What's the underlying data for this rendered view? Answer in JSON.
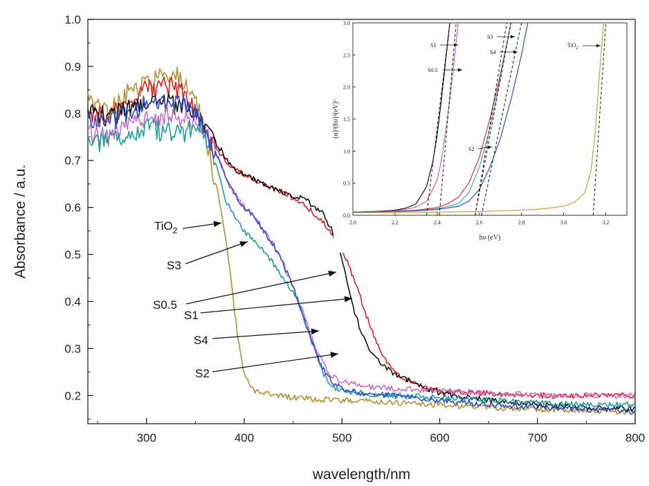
{
  "chart_data": [
    {
      "type": "line",
      "xlabel": "wavelength/nm",
      "ylabel": "Absorbance / a.u.",
      "xlim": [
        240,
        800
      ],
      "ylim": [
        0.14,
        1.0
      ],
      "xticks": [
        "300",
        "400",
        "500",
        "600",
        "700",
        "800"
      ],
      "yticks": [
        "0.2",
        "0.3",
        "0.4",
        "0.5",
        "0.6",
        "0.7",
        "0.8",
        "0.9",
        "1.0"
      ],
      "series": [
        {
          "name": "TiO2",
          "color": "#b09030",
          "x": [
            240,
            260,
            280,
            300,
            320,
            335,
            345,
            355,
            360,
            365,
            370,
            375,
            380,
            385,
            390,
            395,
            400,
            410,
            420,
            450,
            500,
            550,
            600,
            650,
            700,
            750,
            800
          ],
          "y": [
            0.83,
            0.8,
            0.84,
            0.86,
            0.88,
            0.88,
            0.85,
            0.8,
            0.76,
            0.71,
            0.66,
            0.61,
            0.55,
            0.47,
            0.38,
            0.3,
            0.24,
            0.21,
            0.205,
            0.195,
            0.19,
            0.185,
            0.18,
            0.175,
            0.17,
            0.168,
            0.165
          ]
        },
        {
          "name": "S3",
          "color": "#e02020",
          "x": [
            240,
            260,
            280,
            300,
            320,
            340,
            350,
            360,
            370,
            380,
            390,
            400,
            420,
            440,
            460,
            480,
            490,
            500,
            510,
            520,
            530,
            540,
            550,
            560,
            580,
            600,
            650,
            700,
            750,
            800
          ],
          "y": [
            0.8,
            0.79,
            0.82,
            0.85,
            0.86,
            0.84,
            0.8,
            0.76,
            0.73,
            0.7,
            0.68,
            0.67,
            0.65,
            0.63,
            0.61,
            0.57,
            0.54,
            0.51,
            0.46,
            0.4,
            0.34,
            0.29,
            0.26,
            0.24,
            0.22,
            0.21,
            0.205,
            0.2,
            0.2,
            0.2
          ]
        },
        {
          "name": "S0.5",
          "color": "#111111",
          "x": [
            240,
            260,
            280,
            300,
            320,
            340,
            350,
            360,
            370,
            380,
            390,
            400,
            420,
            440,
            460,
            480,
            490,
            500,
            510,
            520,
            530,
            540,
            550,
            560,
            580,
            600,
            650,
            700,
            750,
            800
          ],
          "y": [
            0.81,
            0.79,
            0.81,
            0.82,
            0.82,
            0.82,
            0.8,
            0.77,
            0.74,
            0.71,
            0.68,
            0.67,
            0.65,
            0.63,
            0.62,
            0.59,
            0.55,
            0.49,
            0.4,
            0.33,
            0.29,
            0.27,
            0.25,
            0.24,
            0.22,
            0.205,
            0.19,
            0.18,
            0.175,
            0.17
          ]
        },
        {
          "name": "S1",
          "color": "#c86cc8",
          "x": [
            240,
            260,
            280,
            300,
            320,
            340,
            350,
            360,
            370,
            380,
            390,
            400,
            410,
            420,
            430,
            440,
            450,
            460,
            470,
            480,
            490,
            500,
            520,
            550,
            600,
            650,
            700,
            750,
            800
          ],
          "y": [
            0.76,
            0.75,
            0.78,
            0.79,
            0.8,
            0.79,
            0.78,
            0.76,
            0.72,
            0.67,
            0.63,
            0.6,
            0.58,
            0.55,
            0.52,
            0.48,
            0.43,
            0.38,
            0.32,
            0.27,
            0.24,
            0.23,
            0.22,
            0.215,
            0.21,
            0.205,
            0.2,
            0.2,
            0.2
          ]
        },
        {
          "name": "S4",
          "color": "#1f9ea0",
          "x": [
            240,
            260,
            280,
            300,
            320,
            340,
            350,
            360,
            370,
            380,
            390,
            400,
            410,
            420,
            430,
            440,
            450,
            460,
            470,
            480,
            490,
            500,
            520,
            550,
            600,
            650,
            700,
            750,
            800
          ],
          "y": [
            0.74,
            0.74,
            0.76,
            0.77,
            0.76,
            0.76,
            0.77,
            0.76,
            0.7,
            0.62,
            0.58,
            0.55,
            0.53,
            0.51,
            0.48,
            0.45,
            0.42,
            0.37,
            0.31,
            0.25,
            0.22,
            0.21,
            0.205,
            0.2,
            0.195,
            0.19,
            0.185,
            0.18,
            0.18
          ]
        },
        {
          "name": "S2",
          "color": "#2f4fc8",
          "x": [
            240,
            260,
            280,
            300,
            320,
            340,
            350,
            360,
            370,
            380,
            390,
            400,
            410,
            420,
            430,
            440,
            450,
            460,
            470,
            480,
            490,
            500,
            520,
            550,
            600,
            650,
            700,
            750,
            800
          ],
          "y": [
            0.79,
            0.78,
            0.8,
            0.82,
            0.82,
            0.82,
            0.8,
            0.77,
            0.72,
            0.67,
            0.63,
            0.6,
            0.58,
            0.55,
            0.52,
            0.48,
            0.43,
            0.37,
            0.31,
            0.26,
            0.23,
            0.215,
            0.205,
            0.2,
            0.19,
            0.18,
            0.175,
            0.17,
            0.165
          ]
        }
      ],
      "annotations": [
        {
          "label": "TiO",
          "sub": "2",
          "series": "TiO2"
        },
        {
          "label": "S3",
          "series": "S3"
        },
        {
          "label": "S0.5",
          "series": "S0.5"
        },
        {
          "label": "S1",
          "series": "S1"
        },
        {
          "label": "S4",
          "series": "S4"
        },
        {
          "label": "S2",
          "series": "S2"
        }
      ]
    },
    {
      "type": "line",
      "xlabel": "hυ (eV)",
      "ylabel": "(α)²(hυ)²(eV)²",
      "xlim": [
        2.0,
        3.3
      ],
      "ylim": [
        0,
        3.0
      ],
      "xticks": [
        "2.0",
        "2.2",
        "2.4",
        "2.6",
        "2.8",
        "3.0",
        "3.2"
      ],
      "yticks": [
        "0.0",
        "0.5",
        "1.0",
        "1.5",
        "2.0",
        "2.5",
        "3.0"
      ],
      "series": [
        {
          "name": "S1",
          "color": "#111111",
          "x": [
            2.0,
            2.1,
            2.2,
            2.25,
            2.3,
            2.35,
            2.38,
            2.4,
            2.42,
            2.44,
            2.46
          ],
          "y": [
            0.05,
            0.06,
            0.08,
            0.11,
            0.18,
            0.45,
            0.85,
            1.25,
            1.8,
            2.4,
            3.0
          ]
        },
        {
          "name": "S0.5",
          "color": "#cc5fbf",
          "x": [
            2.0,
            2.1,
            2.2,
            2.25,
            2.3,
            2.35,
            2.4,
            2.42,
            2.44,
            2.46,
            2.48,
            2.5
          ],
          "y": [
            0.05,
            0.06,
            0.07,
            0.09,
            0.13,
            0.22,
            0.55,
            0.85,
            1.3,
            1.8,
            2.4,
            3.0
          ]
        },
        {
          "name": "S3",
          "color": "#e03030",
          "x": [
            2.0,
            2.2,
            2.3,
            2.4,
            2.45,
            2.5,
            2.55,
            2.6,
            2.65,
            2.7,
            2.75
          ],
          "y": [
            0.05,
            0.06,
            0.08,
            0.12,
            0.18,
            0.28,
            0.5,
            0.9,
            1.5,
            2.2,
            3.0
          ]
        },
        {
          "name": "S4",
          "color": "#3aacb0",
          "x": [
            2.0,
            2.2,
            2.3,
            2.4,
            2.5,
            2.55,
            2.6,
            2.65,
            2.7,
            2.75
          ],
          "y": [
            0.05,
            0.06,
            0.07,
            0.1,
            0.18,
            0.35,
            0.75,
            1.35,
            2.15,
            3.0
          ]
        },
        {
          "name": "S2",
          "color": "#3050c0",
          "x": [
            2.0,
            2.2,
            2.3,
            2.4,
            2.5,
            2.55,
            2.6,
            2.65,
            2.7,
            2.75,
            2.8,
            2.83
          ],
          "y": [
            0.05,
            0.06,
            0.07,
            0.09,
            0.14,
            0.22,
            0.4,
            0.75,
            1.2,
            1.8,
            2.5,
            3.0
          ]
        },
        {
          "name": "TiO2",
          "color": "#c4a040",
          "x": [
            2.0,
            2.4,
            2.6,
            2.8,
            2.9,
            3.0,
            3.05,
            3.1,
            3.13,
            3.15,
            3.17,
            3.19
          ],
          "y": [
            0.04,
            0.05,
            0.06,
            0.08,
            0.1,
            0.14,
            0.2,
            0.35,
            0.7,
            1.3,
            2.2,
            3.0
          ]
        }
      ],
      "fit_lines": [
        {
          "series": "S1",
          "x": [
            2.35,
            2.46
          ]
        },
        {
          "series": "S0.5",
          "x": [
            2.41,
            2.49
          ]
        },
        {
          "series": "S3",
          "x": [
            2.58,
            2.75
          ]
        },
        {
          "series": "S4",
          "x": [
            2.58,
            2.73
          ]
        },
        {
          "series": "S2",
          "x": [
            2.61,
            2.8
          ]
        },
        {
          "series": "TiO2",
          "x": [
            3.14,
            3.2
          ]
        }
      ],
      "annotations": [
        {
          "label": "S1",
          "series": "S1"
        },
        {
          "label": "S0.5",
          "series": "S0.5"
        },
        {
          "label": "S3",
          "series": "S3"
        },
        {
          "label": "S4",
          "series": "S4"
        },
        {
          "label": "S2",
          "series": "S2"
        },
        {
          "label": "TiO",
          "sub": "2",
          "series": "TiO2"
        }
      ]
    }
  ]
}
